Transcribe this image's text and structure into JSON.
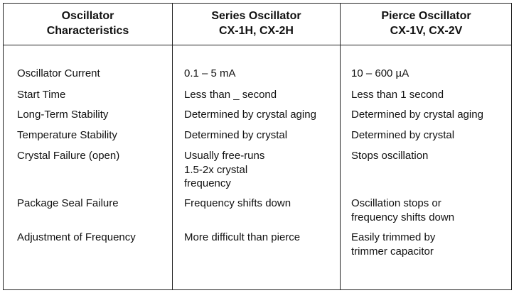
{
  "table": {
    "headers": [
      "Oscillator\nCharacteristics",
      "Series Oscillator\nCX-1H, CX-2H",
      "Pierce Oscillator\nCX-1V, CX-2V"
    ],
    "rows": [
      [
        "Oscillator Current",
        "0.1 – 5 mA",
        "10 – 600 µA"
      ],
      [
        "Start Time",
        "Less than _ second",
        "Less than 1 second"
      ],
      [
        "Long-Term Stability",
        "Determined by crystal aging",
        "Determined by crystal aging"
      ],
      [
        "Temperature Stability",
        "Determined by crystal",
        "Determined by crystal"
      ],
      [
        "Crystal Failure (open)",
        "Usually free-runs\n1.5-2x crystal\nfrequency",
        "Stops oscillation"
      ],
      [
        "Package Seal Failure",
        "Frequency shifts down",
        "Oscillation stops or\nfrequency shifts down"
      ],
      [
        "Adjustment of Frequency",
        "More difficult than pierce",
        "Easily trimmed by\ntrimmer capacitor"
      ]
    ]
  }
}
